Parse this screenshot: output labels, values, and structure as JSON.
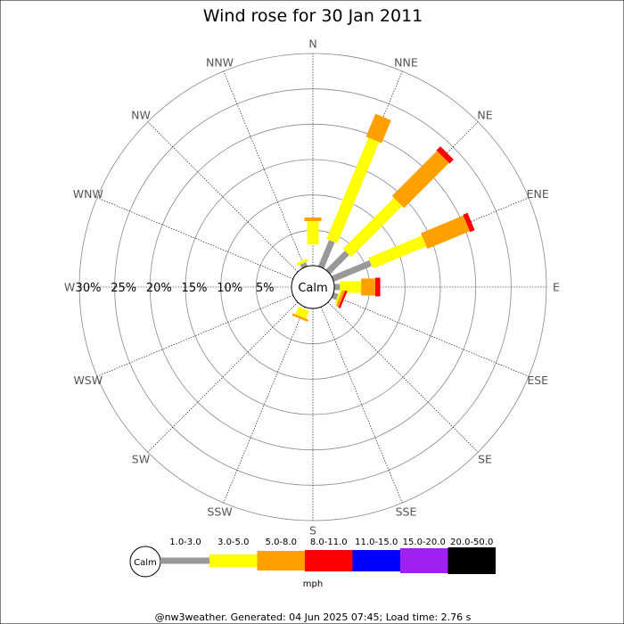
{
  "chart_data": {
    "type": "wind-rose",
    "title": "Wind rose for 30 Jan 2011",
    "directions": [
      "N",
      "NNE",
      "NE",
      "ENE",
      "E",
      "ESE",
      "SE",
      "SSE",
      "S",
      "SSW",
      "SW",
      "WSW",
      "W",
      "WNW",
      "NW",
      "NNW"
    ],
    "ring_labels": [
      "30%",
      "25%",
      "20%",
      "15%",
      "10%",
      "5%"
    ],
    "ring_values": [
      5,
      10,
      15,
      20,
      25,
      30
    ],
    "max_percent": 30,
    "calm_label": "Calm",
    "unit_label": "mph",
    "speed_bins": [
      {
        "label": "1.0-3.0",
        "color": "#999999"
      },
      {
        "label": "3.0-5.0",
        "color": "#ffff00"
      },
      {
        "label": "5.0-8.0",
        "color": "#ff9f00"
      },
      {
        "label": "8.0-11.0",
        "color": "#ff0000"
      },
      {
        "label": "11.0-15.0",
        "color": "#0000ff"
      },
      {
        "label": "15.0-20.0",
        "color": "#a020f0"
      },
      {
        "label": "20.0-50.0",
        "color": "#000000"
      }
    ],
    "series": [
      {
        "direction": "N",
        "segments": [
          {
            "bin": "3.0-5.0",
            "start": 3.0,
            "end": 6.3
          },
          {
            "bin": "5.0-8.0",
            "start": 6.3,
            "end": 6.8
          }
        ]
      },
      {
        "direction": "NNE",
        "segments": [
          {
            "bin": "1.0-3.0",
            "start": 0.0,
            "end": 4.0
          },
          {
            "bin": "3.0-5.0",
            "start": 4.0,
            "end": 19.5
          },
          {
            "bin": "5.0-8.0",
            "start": 19.5,
            "end": 23.0
          }
        ]
      },
      {
        "direction": "NE",
        "segments": [
          {
            "bin": "1.0-3.0",
            "start": 0.0,
            "end": 3.8
          },
          {
            "bin": "3.0-5.0",
            "start": 3.8,
            "end": 14.0
          },
          {
            "bin": "5.0-8.0",
            "start": 14.0,
            "end": 23.0
          },
          {
            "bin": "8.0-11.0",
            "start": 23.0,
            "end": 23.8
          }
        ]
      },
      {
        "direction": "ENE",
        "segments": [
          {
            "bin": "1.0-3.0",
            "start": 0.0,
            "end": 5.8
          },
          {
            "bin": "3.0-5.0",
            "start": 5.8,
            "end": 14.0
          },
          {
            "bin": "5.0-8.0",
            "start": 14.0,
            "end": 20.5
          },
          {
            "bin": "8.0-11.0",
            "start": 20.5,
            "end": 21.2
          }
        ]
      },
      {
        "direction": "E",
        "segments": [
          {
            "bin": "1.0-3.0",
            "start": 0.0,
            "end": 0.8
          },
          {
            "bin": "3.0-5.0",
            "start": 0.8,
            "end": 3.8
          },
          {
            "bin": "5.0-8.0",
            "start": 3.8,
            "end": 5.8
          },
          {
            "bin": "8.0-11.0",
            "start": 5.8,
            "end": 6.5
          }
        ]
      },
      {
        "direction": "ESE",
        "segments": [
          {
            "bin": "1.0-3.0",
            "start": 0.0,
            "end": 0.7
          },
          {
            "bin": "3.0-5.0",
            "start": 0.7,
            "end": 1.0
          },
          {
            "bin": "5.0-8.0",
            "start": 1.0,
            "end": 1.4
          },
          {
            "bin": "8.0-11.0",
            "start": 1.4,
            "end": 1.7
          }
        ]
      },
      {
        "direction": "SE",
        "segments": []
      },
      {
        "direction": "SSE",
        "segments": []
      },
      {
        "direction": "S",
        "segments": []
      },
      {
        "direction": "SSW",
        "segments": [
          {
            "bin": "3.0-5.0",
            "start": 0.3,
            "end": 1.5
          },
          {
            "bin": "5.0-8.0",
            "start": 1.5,
            "end": 1.8
          }
        ]
      },
      {
        "direction": "SW",
        "segments": []
      },
      {
        "direction": "WSW",
        "segments": []
      },
      {
        "direction": "W",
        "segments": []
      },
      {
        "direction": "WNW",
        "segments": []
      },
      {
        "direction": "NW",
        "segments": []
      },
      {
        "direction": "NNW",
        "segments": [
          {
            "bin": "1.0-3.0",
            "start": 0.0,
            "end": 0.6
          },
          {
            "bin": "3.0-5.0",
            "start": 0.6,
            "end": 1.0
          }
        ]
      }
    ],
    "grid": true
  },
  "footer": "@nw3weather. Generated: 04 Jun 2025 07:45; Load time: 2.76 s"
}
